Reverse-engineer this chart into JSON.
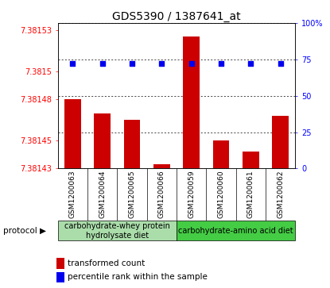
{
  "title": "GDS5390 / 1387641_at",
  "samples": [
    "GSM1200063",
    "GSM1200064",
    "GSM1200065",
    "GSM1200066",
    "GSM1200059",
    "GSM1200060",
    "GSM1200061",
    "GSM1200062"
  ],
  "bar_values": [
    7.38148,
    7.38147,
    7.381465,
    7.381433,
    7.381525,
    7.38145,
    7.381442,
    7.381468
  ],
  "percentile_values": [
    72,
    72,
    72,
    72,
    72,
    72,
    72,
    72
  ],
  "bar_bottom": 7.38143,
  "ylim_min": 7.38143,
  "ylim_max": 7.381535,
  "yticks": [
    7.38143,
    7.38145,
    7.38148,
    7.3815,
    7.38153
  ],
  "ytick_labels": [
    "7.38143",
    "7.38145",
    "7.38148",
    "7.3815",
    "7.38153"
  ],
  "right_yticks": [
    0,
    25,
    50,
    75,
    100
  ],
  "right_ylim": [
    0,
    100
  ],
  "bar_color": "#cc0000",
  "dot_color": "#0000ee",
  "group1_label": "carbohydrate-whey protein\nhydrolysate diet",
  "group2_label": "carbohydrate-amino acid diet",
  "group1_color": "#aaddaa",
  "group2_color": "#44cc44",
  "legend_bar_label": "transformed count",
  "legend_dot_label": "percentile rank within the sample",
  "protocol_label": "protocol",
  "title_fontsize": 10,
  "tick_fontsize": 7,
  "sample_fontsize": 6.5,
  "legend_fontsize": 7.5,
  "group_fontsize": 7
}
